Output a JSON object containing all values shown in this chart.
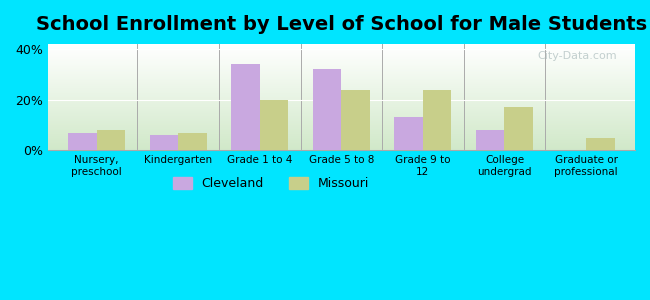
{
  "title": "School Enrollment by Level of School for Male Students",
  "categories": [
    "Nursery,\npreschool",
    "Kindergarten",
    "Grade 1 to 4",
    "Grade 5 to 8",
    "Grade 9 to\n12",
    "College\nundergrad",
    "Graduate or\nprofessional"
  ],
  "cleveland": [
    7,
    6,
    34,
    32,
    13,
    8,
    0
  ],
  "missouri": [
    8,
    7,
    20,
    24,
    24,
    17,
    5
  ],
  "cleveland_color": "#c9a8e0",
  "missouri_color": "#c8cf8a",
  "background_color": "#00e5ff",
  "plot_bg_top": "#ffffff",
  "plot_bg_bottom": "#d0e8c8",
  "ylim": [
    0,
    42
  ],
  "yticks": [
    0,
    20,
    40
  ],
  "ytick_labels": [
    "0%",
    "20%",
    "40%"
  ],
  "legend_cleveland": "Cleveland",
  "legend_missouri": "Missouri",
  "title_fontsize": 14,
  "watermark": "City-Data.com"
}
